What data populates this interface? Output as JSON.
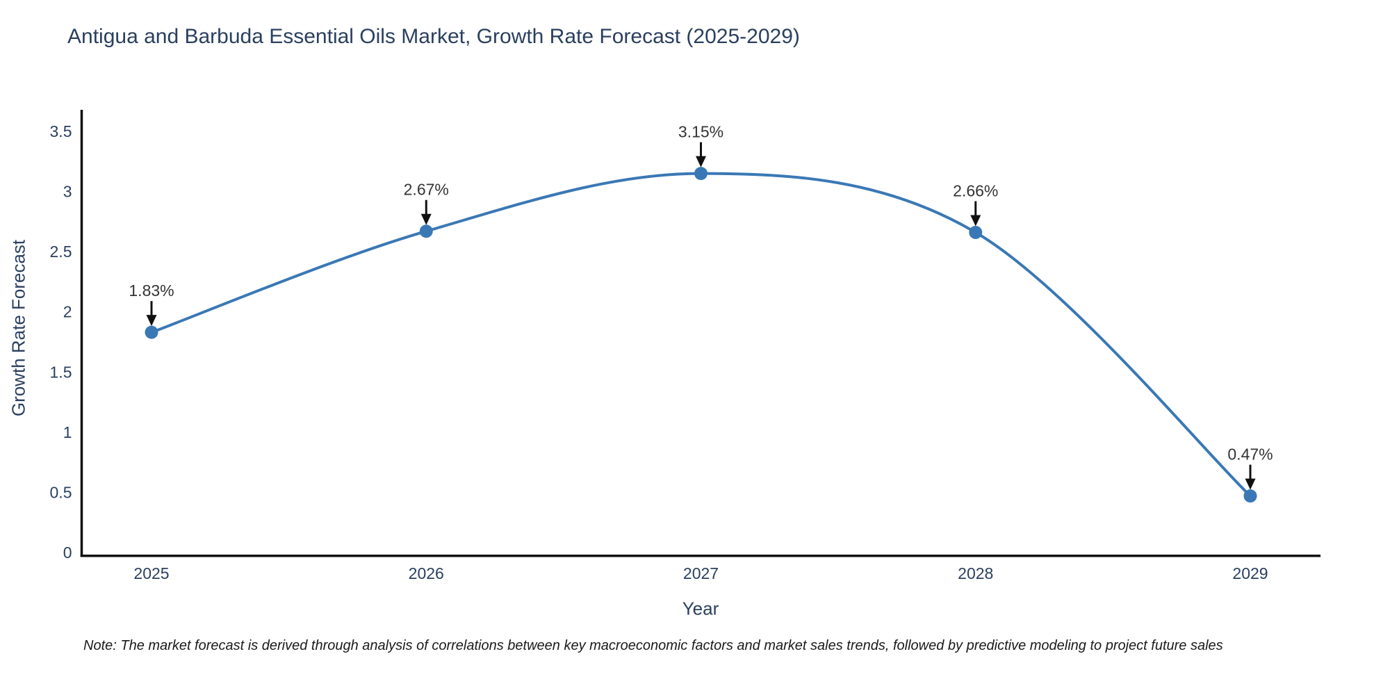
{
  "note": "Note: The market forecast is derived through analysis of correlations between key macroeconomic factors and market sales trends, followed by predictive modeling to project future sales",
  "chart_data": {
    "type": "line",
    "title": "Antigua and Barbuda Essential Oils Market, Growth Rate Forecast (2025-2029)",
    "xlabel": "Year",
    "ylabel": "Growth Rate Forecast",
    "x": [
      2025,
      2026,
      2027,
      2028,
      2029
    ],
    "values": [
      1.83,
      2.67,
      3.15,
      2.66,
      0.47
    ],
    "point_labels": [
      "1.83%",
      "2.67%",
      "3.15%",
      "2.66%",
      "0.47%"
    ],
    "xticks": [
      "2025",
      "2026",
      "2027",
      "2028",
      "2029"
    ],
    "yticks": [
      "0",
      "0.5",
      "1",
      "1.5",
      "2",
      "2.5",
      "3",
      "3.5"
    ],
    "ytick_values": [
      0,
      0.5,
      1,
      1.5,
      2,
      2.5,
      3,
      3.5
    ],
    "ylim": [
      0,
      3.7
    ],
    "grid": false,
    "line_style": "spline",
    "legend": "none",
    "colors": {
      "line": "#3a78b5",
      "marker": "#3a78b5",
      "arrow": "#111111",
      "axis": "#111111",
      "tick_text": "#2a3f5f",
      "annotation_text": "#333333",
      "title_text": "#2a3f5f"
    }
  }
}
